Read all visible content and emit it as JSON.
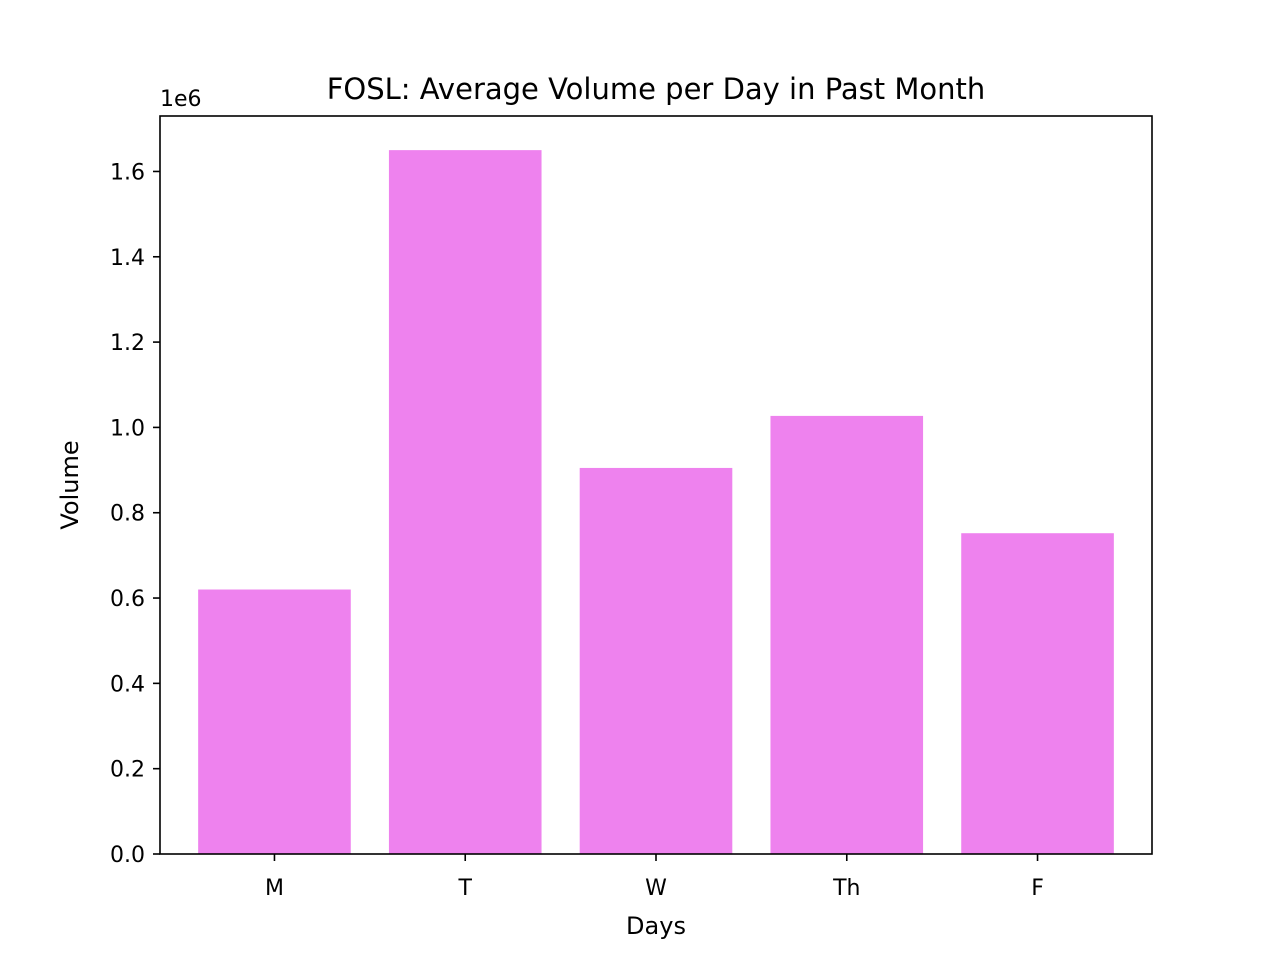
{
  "chart_data": {
    "type": "bar",
    "title": "FOSL: Average Volume per Day in Past Month",
    "xlabel": "Days",
    "ylabel": "Volume",
    "y_offset_label": "1e6",
    "categories": [
      "M",
      "T",
      "W",
      "Th",
      "F"
    ],
    "values": [
      620000,
      1650000,
      905000,
      1027000,
      752000
    ],
    "ylim": [
      0,
      1730000
    ],
    "y_ticks": [
      0.0,
      0.2,
      0.4,
      0.6,
      0.8,
      1.0,
      1.2,
      1.4,
      1.6
    ],
    "y_tick_labels": [
      "0.0",
      "0.2",
      "0.4",
      "0.6",
      "0.8",
      "1.0",
      "1.2",
      "1.4",
      "1.6"
    ],
    "y_tick_scale": 1000000,
    "bar_color": "#ee82ee",
    "grid": false,
    "legend": "none"
  }
}
